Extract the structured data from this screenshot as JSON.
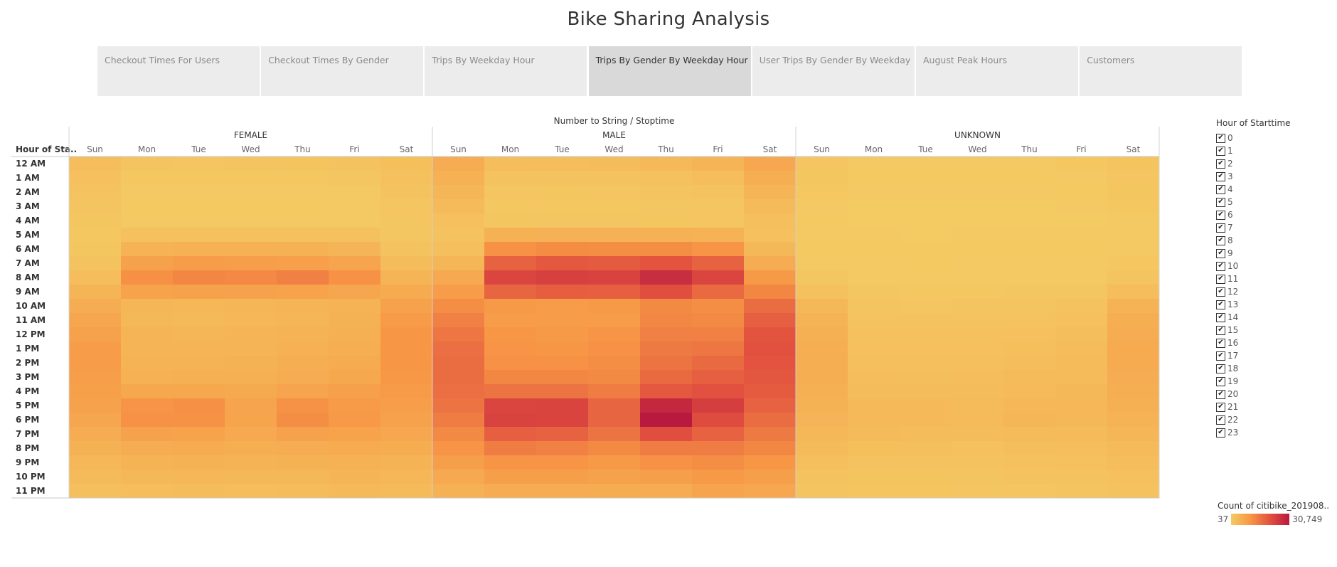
{
  "title": "Bike Sharing Analysis",
  "tabs": [
    {
      "label": "Checkout Times For Users",
      "active": false
    },
    {
      "label": "Checkout Times By Gender",
      "active": false
    },
    {
      "label": "Trips By Weekday Hour",
      "active": false
    },
    {
      "label": "Trips By Gender By Weekday Hour",
      "active": true
    },
    {
      "label": "User Trips By Gender By Weekday",
      "active": false
    },
    {
      "label": "August Peak Hours",
      "active": false
    },
    {
      "label": "Customers",
      "active": false
    }
  ],
  "filter": {
    "title": "Hour of Starttime",
    "items": [
      "0",
      "1",
      "2",
      "3",
      "4",
      "5",
      "6",
      "7",
      "8",
      "9",
      "10",
      "11",
      "12",
      "13",
      "14",
      "15",
      "16",
      "17",
      "18",
      "19",
      "20",
      "21",
      "22",
      "23"
    ],
    "checkmark": "✔"
  },
  "color_legend": {
    "title": "Count of citibike_201908..",
    "min_label": "37",
    "max_label": "30,749",
    "colors": [
      "#f4ca63",
      "#f79645",
      "#e2513f",
      "#b8193f"
    ]
  },
  "chart_data": {
    "type": "heatmap",
    "top_header": "Number to String / Stoptime",
    "row_header": "Hour of Sta..",
    "groups": [
      "FEMALE",
      "MALE",
      "UNKNOWN"
    ],
    "columns": [
      "Sun",
      "Mon",
      "Tue",
      "Wed",
      "Thu",
      "Fri",
      "Sat"
    ],
    "rows": [
      "12 AM",
      "1 AM",
      "2 AM",
      "3 AM",
      "4 AM",
      "5 AM",
      "6 AM",
      "7 AM",
      "8 AM",
      "9 AM",
      "10 AM",
      "11 AM",
      "12 PM",
      "1 PM",
      "2 PM",
      "3 PM",
      "4 PM",
      "5 PM",
      "6 PM",
      "7 PM",
      "8 PM",
      "9 PM",
      "10 PM",
      "11 PM"
    ],
    "value_range": [
      37,
      30749
    ],
    "values": {
      "FEMALE": [
        [
          2500,
          1200,
          1100,
          1150,
          1300,
          1400,
          2300
        ],
        [
          2100,
          700,
          600,
          650,
          700,
          800,
          1900
        ],
        [
          1700,
          450,
          350,
          400,
          450,
          500,
          1500
        ],
        [
          1200,
          300,
          250,
          280,
          300,
          350,
          1100
        ],
        [
          900,
          400,
          350,
          380,
          400,
          400,
          800
        ],
        [
          700,
          1800,
          1800,
          1800,
          1850,
          1750,
          800
        ],
        [
          900,
          4500,
          5000,
          5000,
          4800,
          4300,
          1500
        ],
        [
          1500,
          8000,
          8800,
          8700,
          8600,
          7500,
          2700
        ],
        [
          2600,
          11200,
          12500,
          12200,
          13500,
          11000,
          4200
        ],
        [
          4200,
          7800,
          8200,
          8000,
          7800,
          7200,
          6200
        ],
        [
          6000,
          4000,
          3800,
          4000,
          4200,
          4500,
          8200
        ],
        [
          7200,
          3600,
          3400,
          3800,
          4000,
          4800,
          9200
        ],
        [
          8200,
          4200,
          4000,
          4200,
          4600,
          5200,
          10000
        ],
        [
          8800,
          4400,
          4100,
          4400,
          5000,
          5600,
          10200
        ],
        [
          8900,
          4600,
          4500,
          4800,
          5600,
          6200,
          10100
        ],
        [
          8700,
          5000,
          5200,
          5200,
          6000,
          6800,
          9800
        ],
        [
          8400,
          6800,
          6800,
          6400,
          7600,
          8300,
          9300
        ],
        [
          8000,
          10500,
          11200,
          7500,
          10800,
          9300,
          8700
        ],
        [
          7200,
          11000,
          10800,
          7400,
          11500,
          9700,
          8000
        ],
        [
          6000,
          8000,
          7800,
          6500,
          8200,
          7800,
          7000
        ],
        [
          4800,
          6000,
          6200,
          5500,
          6000,
          6200,
          5800
        ],
        [
          3800,
          4600,
          4800,
          4500,
          4800,
          5000,
          4600
        ],
        [
          3000,
          3600,
          3800,
          3600,
          3600,
          4200,
          3800
        ],
        [
          2200,
          2600,
          2700,
          2600,
          2800,
          3400,
          3000
        ]
      ],
      "MALE": [
        [
          6000,
          2600,
          2500,
          2700,
          3400,
          4200,
          7000
        ],
        [
          5000,
          1600,
          1500,
          1700,
          1900,
          2600,
          5500
        ],
        [
          4000,
          1000,
          900,
          1000,
          1200,
          1600,
          4200
        ],
        [
          3000,
          700,
          650,
          700,
          800,
          1100,
          3200
        ],
        [
          2100,
          900,
          800,
          850,
          900,
          1000,
          2200
        ],
        [
          1600,
          4800,
          4900,
          4900,
          4900,
          4500,
          2000
        ],
        [
          2200,
          11000,
          11800,
          11500,
          11500,
          10500,
          3500
        ],
        [
          4000,
          18000,
          19500,
          19000,
          20000,
          18000,
          6000
        ],
        [
          6500,
          22500,
          23500,
          23000,
          27000,
          22500,
          9500
        ],
        [
          9000,
          17500,
          18800,
          18500,
          21000,
          17000,
          12500
        ],
        [
          11500,
          9500,
          9000,
          9500,
          12000,
          11500,
          16500
        ],
        [
          13500,
          9000,
          8800,
          9000,
          12500,
          12000,
          18500
        ],
        [
          15000,
          10000,
          9500,
          10500,
          13500,
          13500,
          20000
        ],
        [
          16000,
          10500,
          10000,
          11000,
          14500,
          15000,
          20500
        ],
        [
          16500,
          11000,
          11000,
          11500,
          15500,
          17000,
          20200
        ],
        [
          16500,
          12500,
          12500,
          12000,
          17000,
          18500,
          19800
        ],
        [
          16000,
          15500,
          15500,
          14000,
          19500,
          20500,
          19000
        ],
        [
          15500,
          22500,
          22800,
          17500,
          28000,
          24000,
          18000
        ],
        [
          14000,
          23000,
          22800,
          17500,
          30749,
          21500,
          16500
        ],
        [
          12000,
          18500,
          18000,
          15500,
          21000,
          18000,
          14500
        ],
        [
          10500,
          14000,
          13500,
          12000,
          14000,
          14000,
          12500
        ],
        [
          8500,
          10500,
          10500,
          9500,
          11000,
          11500,
          10000
        ],
        [
          6500,
          8500,
          8500,
          8000,
          8500,
          9500,
          8500
        ],
        [
          5000,
          6000,
          6000,
          5800,
          6000,
          7500,
          7000
        ]
      ],
      "UNKNOWN": [
        [
          1100,
          500,
          450,
          450,
          500,
          600,
          1300
        ],
        [
          900,
          300,
          280,
          280,
          300,
          350,
          1100
        ],
        [
          700,
          200,
          180,
          180,
          200,
          220,
          900
        ],
        [
          500,
          120,
          100,
          110,
          120,
          150,
          700
        ],
        [
          300,
          100,
          80,
          90,
          100,
          110,
          400
        ],
        [
          200,
          150,
          130,
          140,
          140,
          140,
          250
        ],
        [
          250,
          250,
          230,
          240,
          240,
          240,
          350
        ],
        [
          400,
          350,
          330,
          340,
          350,
          360,
          600
        ],
        [
          900,
          500,
          450,
          460,
          500,
          500,
          1200
        ],
        [
          1800,
          800,
          700,
          700,
          750,
          800,
          2600
        ],
        [
          3500,
          1200,
          1100,
          1150,
          1200,
          1500,
          4500
        ],
        [
          4500,
          1600,
          1500,
          1550,
          1700,
          2000,
          5500
        ],
        [
          5200,
          1900,
          1800,
          1850,
          2000,
          2400,
          6000
        ],
        [
          5500,
          2100,
          2000,
          2100,
          2300,
          2700,
          6200
        ],
        [
          5600,
          2300,
          2200,
          2300,
          2600,
          3000,
          6100
        ],
        [
          5500,
          2500,
          2400,
          2500,
          2900,
          3200,
          5900
        ],
        [
          5200,
          2800,
          2700,
          2700,
          3200,
          3500,
          5600
        ],
        [
          4800,
          3300,
          3300,
          3000,
          3800,
          3700,
          5100
        ],
        [
          4300,
          3400,
          3300,
          3000,
          3900,
          3600,
          4600
        ],
        [
          3600,
          2900,
          2800,
          2700,
          3100,
          3100,
          3900
        ],
        [
          2900,
          2300,
          2200,
          2100,
          2400,
          2600,
          3200
        ],
        [
          2200,
          1700,
          1700,
          1600,
          1800,
          2100,
          2600
        ],
        [
          1700,
          1300,
          1300,
          1200,
          1400,
          1700,
          2100
        ],
        [
          1300,
          900,
          900,
          850,
          1000,
          1300,
          1700
        ]
      ]
    }
  }
}
